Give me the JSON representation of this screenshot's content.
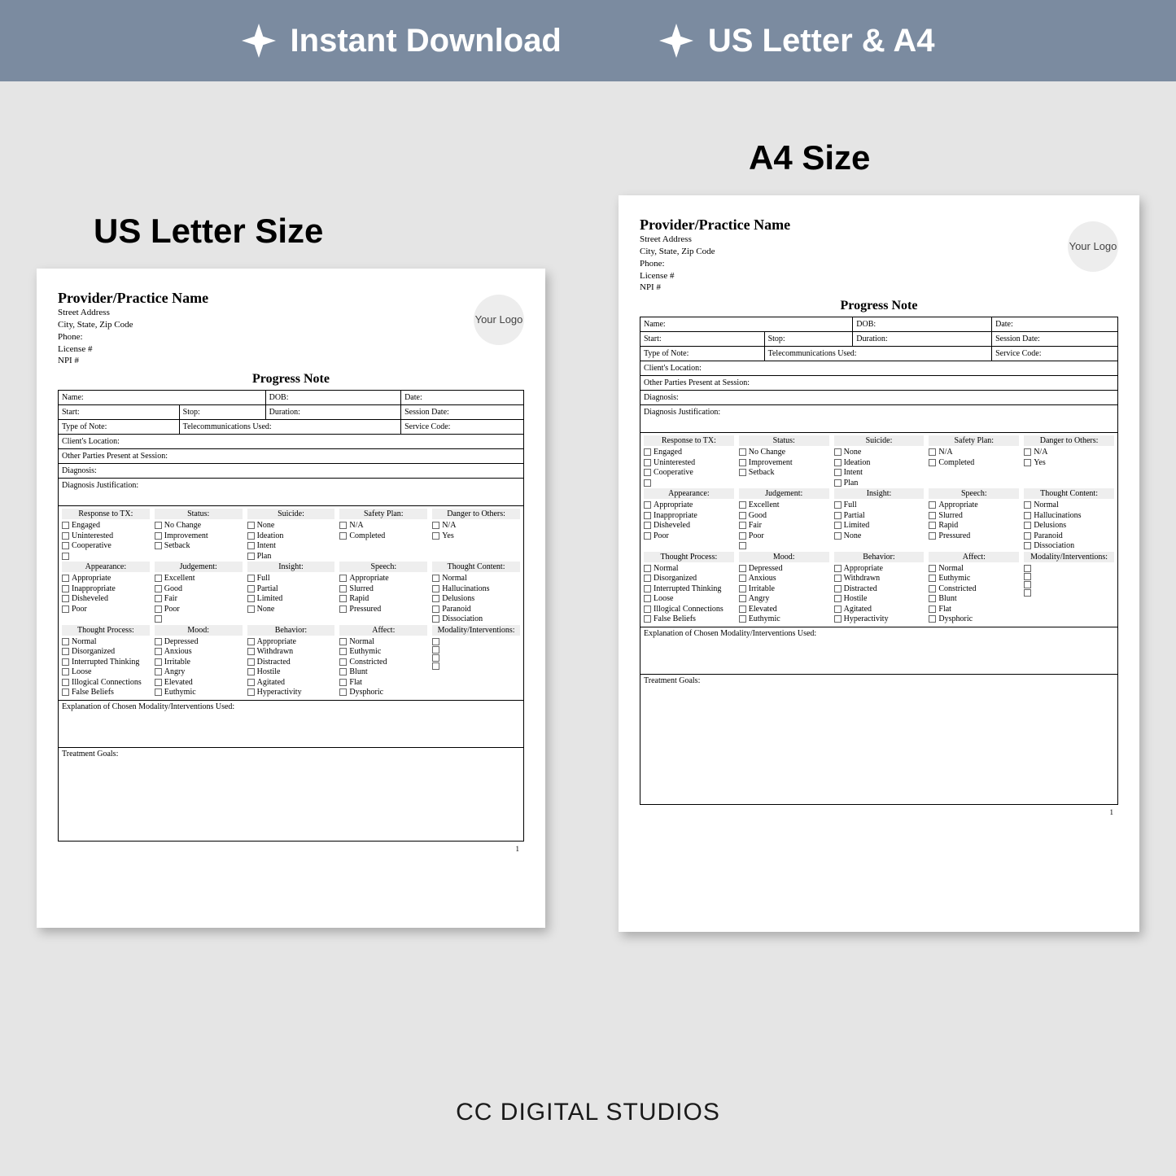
{
  "banner": {
    "bg_color": "#7b8ba0",
    "text_color": "#ffffff",
    "items": [
      "Instant Download",
      "US Letter & A4"
    ]
  },
  "labels": {
    "us": "US Letter Size",
    "a4": "A4 Size"
  },
  "footer": "CC DIGITAL STUDIOS",
  "doc": {
    "provider_name": "Provider/Practice Name",
    "address_lines": [
      "Street Address",
      "City, State, Zip Code",
      "Phone:",
      "License #",
      "NPI #"
    ],
    "logo_text": "Your Logo",
    "title": "Progress Note",
    "fields": {
      "name": "Name:",
      "dob": "DOB:",
      "date": "Date:",
      "start": "Start:",
      "stop": "Stop:",
      "duration": "Duration:",
      "session_date": "Session Date:",
      "type_note": "Type of Note:",
      "telecom": "Telecommunications Used:",
      "service_code": "Service Code:",
      "location": "Client's Location:",
      "other_parties": "Other Parties Present at Session:",
      "diagnosis": "Diagnosis:",
      "diag_just": "Diagnosis Justification:",
      "explain": "Explanation of Chosen Modality/Interventions Used:",
      "goals": "Treatment Goals:"
    },
    "page_number": "1",
    "checklist_rows": [
      [
        {
          "head": "Response to TX:",
          "items": [
            "Engaged",
            "Uninterested",
            "Cooperative",
            ""
          ]
        },
        {
          "head": "Status:",
          "items": [
            "No Change",
            "Improvement",
            "Setback"
          ]
        },
        {
          "head": "Suicide:",
          "items": [
            "None",
            "Ideation",
            "Intent",
            "Plan"
          ]
        },
        {
          "head": "Safety Plan:",
          "items": [
            "N/A",
            "Completed"
          ]
        },
        {
          "head": "Danger to Others:",
          "items": [
            "N/A",
            "Yes"
          ]
        }
      ],
      [
        {
          "head": "Appearance:",
          "items": [
            "Appropriate",
            "Inappropriate",
            "Disheveled",
            "Poor"
          ]
        },
        {
          "head": "Judgement:",
          "items": [
            "Excellent",
            "Good",
            "Fair",
            "Poor",
            ""
          ]
        },
        {
          "head": "Insight:",
          "items": [
            "Full",
            "Partial",
            "Limited",
            "None"
          ]
        },
        {
          "head": "Speech:",
          "items": [
            "Appropriate",
            "Slurred",
            "Rapid",
            "Pressured"
          ]
        },
        {
          "head": "Thought Content:",
          "items": [
            "Normal",
            "Hallucinations",
            "Delusions",
            "Paranoid",
            "Dissociation"
          ]
        }
      ],
      [
        {
          "head": "Thought Process:",
          "items": [
            "Normal",
            "Disorganized",
            "Interrupted Thinking",
            "Loose",
            "Illogical Connections",
            "False Beliefs"
          ]
        },
        {
          "head": "Mood:",
          "items": [
            "Depressed",
            "Anxious",
            "Irritable",
            "Angry",
            "Elevated",
            "Euthymic"
          ]
        },
        {
          "head": "Behavior:",
          "items": [
            "Appropriate",
            "Withdrawn",
            "Distracted",
            "Hostile",
            "Agitated",
            "Hyperactivity"
          ]
        },
        {
          "head": "Affect:",
          "items": [
            "Normal",
            "Euthymic",
            "Constricted",
            "Blunt",
            "Flat",
            "Dysphoric"
          ]
        },
        {
          "head": "Modality/Interventions:",
          "items": [
            "",
            "",
            "",
            ""
          ]
        }
      ]
    ]
  }
}
